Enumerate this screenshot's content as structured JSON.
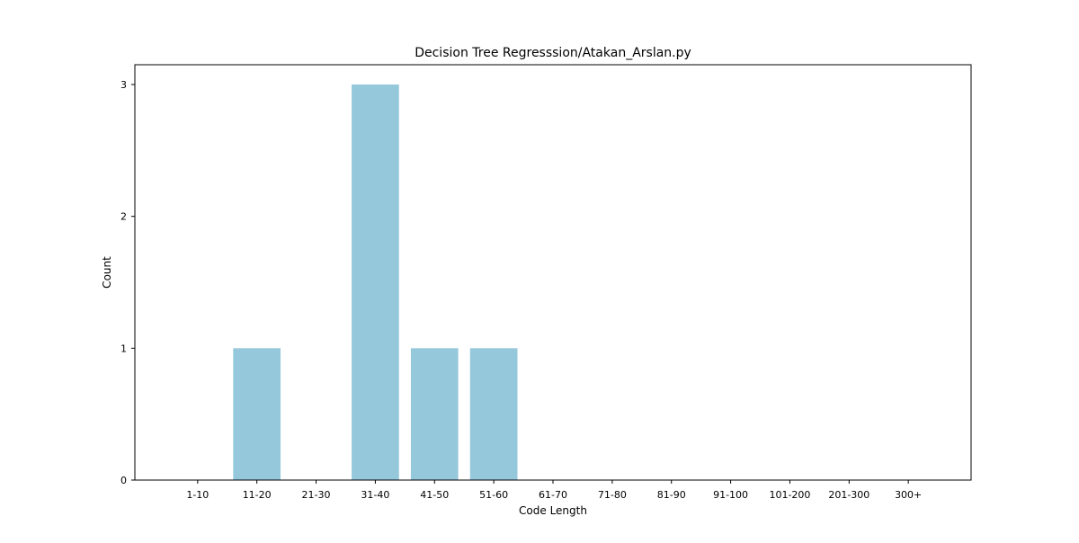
{
  "chart_data": {
    "type": "bar",
    "title": "Decision Tree Regresssion/Atakan_Arslan.py",
    "xlabel": "Code Length",
    "ylabel": "Count",
    "categories": [
      "1-10",
      "11-20",
      "21-30",
      "31-40",
      "41-50",
      "51-60",
      "61-70",
      "71-80",
      "81-90",
      "91-100",
      "101-200",
      "201-300",
      "300+"
    ],
    "values": [
      0,
      1,
      0,
      3,
      1,
      1,
      0,
      0,
      0,
      0,
      0,
      0,
      0
    ],
    "ylim": [
      0,
      3.15
    ],
    "yticks": [
      0,
      1,
      2,
      3
    ],
    "grid": false,
    "bar_color": "#96c8dc"
  }
}
